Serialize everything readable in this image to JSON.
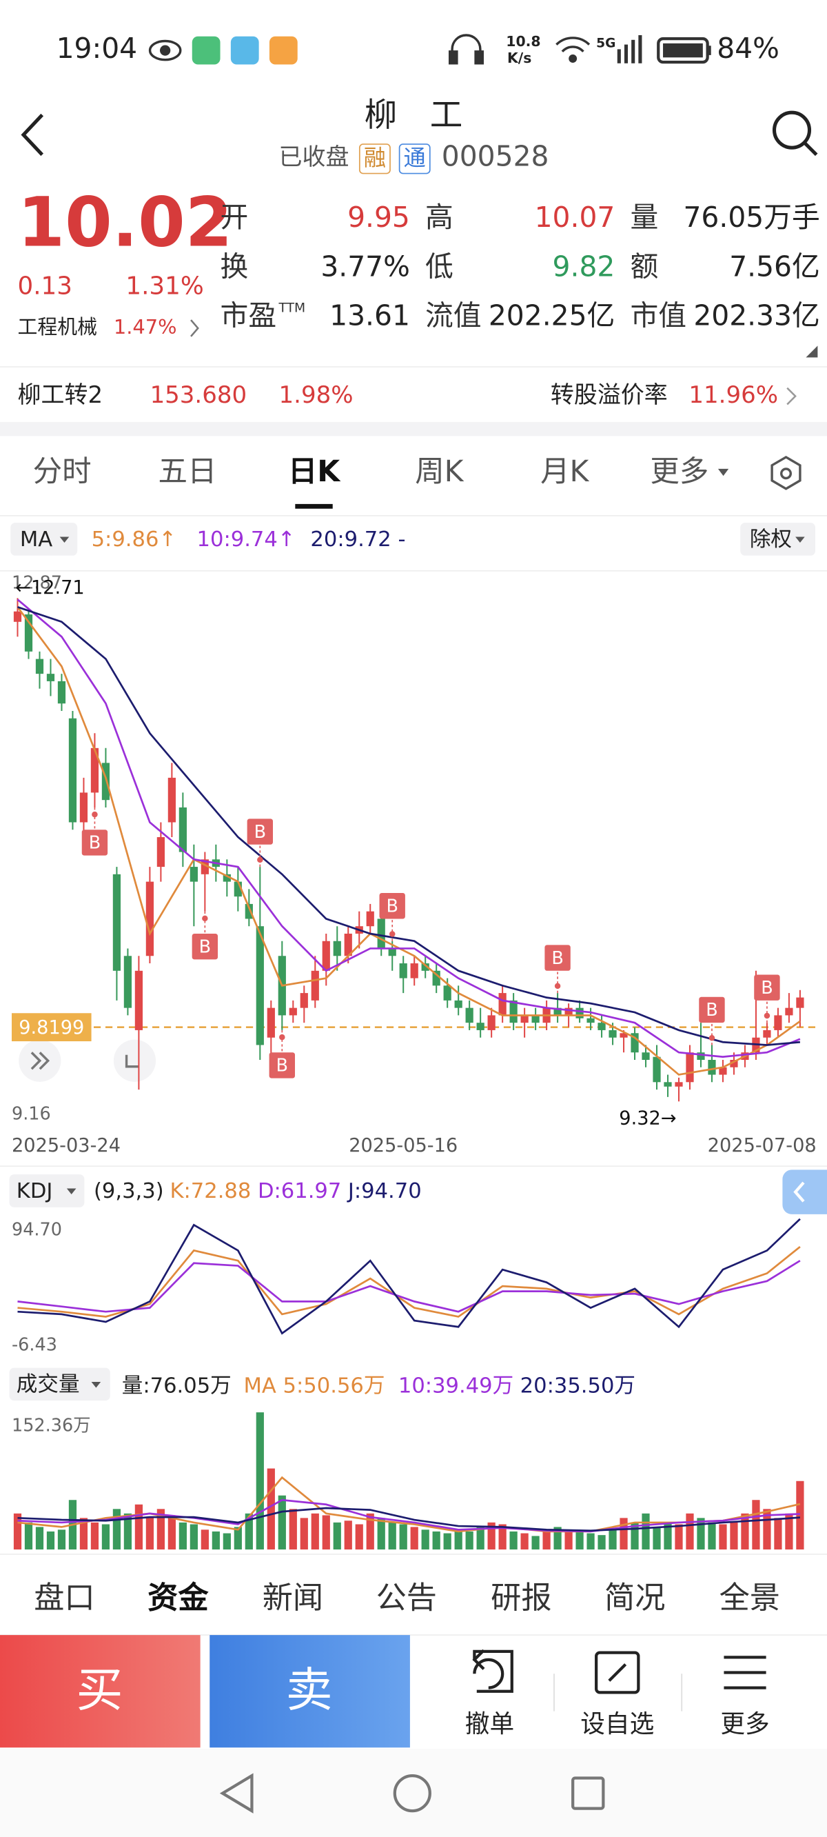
{
  "status_bar": {
    "time": "19:04",
    "speed": "10.8",
    "speed_unit": "K/s",
    "network": "5G",
    "battery": "84%"
  },
  "header": {
    "title": "柳　工",
    "status": "已收盘",
    "tags": [
      "融",
      "通"
    ],
    "code": "000528"
  },
  "quote": {
    "price": "10.02",
    "change": "0.13",
    "change_pct": "1.31%",
    "sector": "工程机械",
    "sector_pct": "1.47%",
    "fields": [
      {
        "label": "开",
        "value": "9.95"
      },
      {
        "label": "高",
        "value": "10.07"
      },
      {
        "label": "量",
        "value": "76.05万手"
      },
      {
        "label": "换",
        "value": "3.77%"
      },
      {
        "label": "低",
        "value": "9.82"
      },
      {
        "label": "额",
        "value": "7.56亿"
      },
      {
        "label": "市盈",
        "sup": "TTM",
        "value": "13.61"
      },
      {
        "label": "流值",
        "value": "202.25亿"
      },
      {
        "label": "市值",
        "value": "202.33亿"
      }
    ]
  },
  "bond": {
    "name": "柳工转2",
    "price": "153.680",
    "pct": "1.98%",
    "premium_label": "转股溢价率",
    "premium": "11.96%"
  },
  "tabs": {
    "items": [
      "分时",
      "五日",
      "日K",
      "周K",
      "月K",
      "更多"
    ],
    "active": 2
  },
  "chart_data": [
    {
      "type": "candlestick",
      "indicator": "MA",
      "adjust": "除权",
      "categories": [
        "2025-03-24",
        null,
        null,
        null,
        null,
        null,
        null,
        null,
        null,
        null,
        null,
        null,
        null,
        null,
        null,
        null,
        null,
        null,
        null,
        null,
        null,
        null,
        null,
        null,
        null,
        null,
        null,
        null,
        null,
        null,
        null,
        null,
        null,
        null,
        null,
        "2025-05-16",
        null,
        null,
        null,
        null,
        null,
        null,
        null,
        null,
        null,
        null,
        null,
        null,
        null,
        null,
        null,
        null,
        null,
        null,
        null,
        null,
        null,
        null,
        null,
        null,
        null,
        null,
        null,
        null,
        null,
        null,
        null,
        null,
        null,
        null,
        null,
        "2025-07-08"
      ],
      "open": [
        12.55,
        12.6,
        12.3,
        12.2,
        12.15,
        11.9,
        11.2,
        11.4,
        11.6,
        10.85,
        10.3,
        9.8,
        10.3,
        10.9,
        11.2,
        11.3,
        10.9,
        10.85,
        10.95,
        10.85,
        10.8,
        10.65,
        10.5,
        9.75,
        10.3,
        9.9,
        9.95,
        10.0,
        10.2,
        10.4,
        10.3,
        10.45,
        10.5,
        10.55,
        10.35,
        10.25,
        10.15,
        10.25,
        10.2,
        10.1,
        10.0,
        9.95,
        9.85,
        9.8,
        9.9,
        10.0,
        9.85,
        9.9,
        9.85,
        9.95,
        9.9,
        9.95,
        9.88,
        9.85,
        9.8,
        9.75,
        9.78,
        9.65,
        9.62,
        9.45,
        9.42,
        9.45,
        9.65,
        9.6,
        9.5,
        9.55,
        9.6,
        9.65,
        9.75,
        9.8,
        9.9,
        9.95
      ],
      "high": [
        12.71,
        12.62,
        12.35,
        12.3,
        12.2,
        11.95,
        11.5,
        11.8,
        11.7,
        10.9,
        10.35,
        10.3,
        10.9,
        11.2,
        11.6,
        11.4,
        11.05,
        11.0,
        11.05,
        10.95,
        10.9,
        10.75,
        10.9,
        10.0,
        10.4,
        10.0,
        10.1,
        10.3,
        10.45,
        10.5,
        10.5,
        10.6,
        10.65,
        10.6,
        10.4,
        10.3,
        10.3,
        10.3,
        10.25,
        10.15,
        10.1,
        10.0,
        9.95,
        9.95,
        10.1,
        10.05,
        9.95,
        9.95,
        10.0,
        10.05,
        9.98,
        10.0,
        9.95,
        9.9,
        9.85,
        9.8,
        9.82,
        9.7,
        9.7,
        9.5,
        9.48,
        9.7,
        9.85,
        9.7,
        9.6,
        9.65,
        9.7,
        10.2,
        9.85,
        9.95,
        10.05,
        10.07
      ],
      "low": [
        12.45,
        12.3,
        12.1,
        12.05,
        11.95,
        11.15,
        11.05,
        11.3,
        11.3,
        10.0,
        9.9,
        9.4,
        10.25,
        10.8,
        11.1,
        10.9,
        10.5,
        10.6,
        10.8,
        10.7,
        10.6,
        10.5,
        9.6,
        9.6,
        9.8,
        9.85,
        9.85,
        9.95,
        10.1,
        10.2,
        10.25,
        10.35,
        10.45,
        10.3,
        10.2,
        10.05,
        10.1,
        10.15,
        10.05,
        9.95,
        9.9,
        9.8,
        9.75,
        9.75,
        9.85,
        9.8,
        9.75,
        9.8,
        9.8,
        9.85,
        9.82,
        9.85,
        9.8,
        9.75,
        9.7,
        9.65,
        9.6,
        9.55,
        9.4,
        9.35,
        9.32,
        9.4,
        9.55,
        9.45,
        9.45,
        9.5,
        9.55,
        9.6,
        9.7,
        9.75,
        9.85,
        9.82
      ],
      "close": [
        12.62,
        12.35,
        12.2,
        12.15,
        12.0,
        11.2,
        11.4,
        11.7,
        11.35,
        10.2,
        9.95,
        10.2,
        10.8,
        11.1,
        11.5,
        11.0,
        10.8,
        10.95,
        10.9,
        10.8,
        10.7,
        10.55,
        9.7,
        9.95,
        9.9,
        9.95,
        10.05,
        10.2,
        10.4,
        10.3,
        10.45,
        10.5,
        10.6,
        10.35,
        10.3,
        10.15,
        10.25,
        10.2,
        10.1,
        10.0,
        9.95,
        9.85,
        9.8,
        9.9,
        10.05,
        9.85,
        9.9,
        9.85,
        9.95,
        9.9,
        9.95,
        9.88,
        9.85,
        9.8,
        9.75,
        9.78,
        9.65,
        9.6,
        9.45,
        9.42,
        9.45,
        9.65,
        9.6,
        9.5,
        9.55,
        9.6,
        9.65,
        9.75,
        9.8,
        9.9,
        9.95,
        10.02
      ],
      "series": [
        {
          "name": "5:9.86↑",
          "color": "#e08a3c",
          "x": [
            0,
            4,
            8,
            12,
            16,
            20,
            24,
            28,
            32,
            36,
            40,
            44,
            48,
            52,
            56,
            60,
            64,
            68,
            71
          ],
          "values": [
            12.65,
            12.25,
            11.5,
            10.45,
            10.95,
            10.8,
            10.1,
            10.15,
            10.45,
            10.3,
            10.05,
            9.9,
            9.9,
            9.9,
            9.75,
            9.5,
            9.55,
            9.7,
            9.86
          ]
        },
        {
          "name": "10:9.74↑",
          "color": "#9b30d9",
          "x": [
            0,
            4,
            8,
            12,
            16,
            20,
            24,
            28,
            32,
            36,
            40,
            44,
            48,
            52,
            56,
            60,
            64,
            68,
            71
          ],
          "values": [
            12.7,
            12.45,
            12.0,
            11.2,
            10.95,
            10.9,
            10.5,
            10.2,
            10.35,
            10.35,
            10.15,
            10.0,
            9.95,
            9.92,
            9.85,
            9.65,
            9.62,
            9.65,
            9.74
          ]
        },
        {
          "name": "20:9.72 -",
          "color": "#1c1c6e",
          "x": [
            0,
            4,
            8,
            12,
            16,
            20,
            24,
            28,
            32,
            36,
            40,
            44,
            48,
            52,
            56,
            60,
            64,
            68,
            71
          ],
          "values": [
            12.65,
            12.55,
            12.3,
            11.8,
            11.45,
            11.1,
            10.85,
            10.55,
            10.45,
            10.4,
            10.2,
            10.1,
            10.02,
            9.98,
            9.92,
            9.8,
            9.72,
            9.7,
            9.72
          ]
        }
      ],
      "ylim": [
        9.16,
        12.87
      ],
      "yticks": [
        12.87,
        9.16
      ],
      "reference": 9.8199,
      "high_label": {
        "value": 12.71,
        "label": "←12.71"
      },
      "low_label": {
        "value": 9.32,
        "label": "9.32→"
      },
      "signals": [
        {
          "day": 7,
          "label": "B",
          "side": "below"
        },
        {
          "day": 17,
          "label": "B",
          "side": "below"
        },
        {
          "day": 22,
          "label": "B",
          "side": "above"
        },
        {
          "day": 24,
          "label": "B",
          "side": "below"
        },
        {
          "day": 34,
          "label": "B",
          "side": "above"
        },
        {
          "day": 49,
          "label": "B",
          "side": "above"
        },
        {
          "day": 63,
          "label": "B",
          "side": "above"
        },
        {
          "day": 68,
          "label": "B",
          "side": "above"
        }
      ],
      "up_color": "#e04848",
      "down_color": "#3a9a5c"
    },
    {
      "type": "line",
      "title": "KDJ",
      "params": "(9,3,3)",
      "series": [
        {
          "name": "K:72.88",
          "color": "#e08a3c",
          "x": [
            0,
            4,
            8,
            12,
            16,
            20,
            24,
            28,
            32,
            36,
            40,
            44,
            48,
            52,
            56,
            60,
            64,
            68,
            71
          ],
          "values": [
            25,
            22,
            18,
            28,
            70,
            62,
            20,
            28,
            48,
            25,
            18,
            42,
            40,
            33,
            38,
            20,
            40,
            52,
            72.88
          ]
        },
        {
          "name": "D:61.97",
          "color": "#9b30d9",
          "x": [
            0,
            4,
            8,
            12,
            16,
            20,
            24,
            28,
            32,
            36,
            40,
            44,
            48,
            52,
            56,
            60,
            64,
            68,
            71
          ],
          "values": [
            30,
            26,
            22,
            25,
            60,
            58,
            30,
            30,
            42,
            30,
            22,
            38,
            38,
            35,
            36,
            28,
            38,
            46,
            61.97
          ]
        },
        {
          "name": "J:94.70",
          "color": "#1c1c6e",
          "x": [
            0,
            4,
            8,
            12,
            16,
            20,
            24,
            28,
            32,
            36,
            40,
            44,
            48,
            52,
            56,
            60,
            64,
            68,
            71
          ],
          "values": [
            22,
            20,
            14,
            30,
            90,
            70,
            5,
            30,
            62,
            15,
            10,
            55,
            45,
            25,
            40,
            10,
            55,
            70,
            94.7
          ]
        }
      ],
      "ylim": [
        -6.43,
        94.7
      ],
      "yticks": [
        {
          "value": 94.7,
          "label": "94.70"
        },
        -6.43
      ]
    },
    {
      "type": "bar",
      "title": "成交量",
      "volume_label": "量:76.05万",
      "values": [
        40,
        30,
        25,
        20,
        22,
        55,
        35,
        30,
        28,
        45,
        40,
        50,
        35,
        45,
        38,
        30,
        28,
        22,
        20,
        18,
        25,
        40,
        152.36,
        90,
        60,
        45,
        35,
        40,
        38,
        30,
        32,
        28,
        40,
        35,
        30,
        28,
        25,
        22,
        20,
        18,
        22,
        20,
        25,
        30,
        28,
        20,
        18,
        15,
        20,
        25,
        22,
        20,
        18,
        16,
        22,
        35,
        30,
        40,
        25,
        30,
        28,
        40,
        35,
        30,
        28,
        30,
        40,
        55,
        45,
        35,
        40,
        76.05
      ],
      "series": [
        {
          "name": "MA 5:50.56万",
          "color": "#e08a3c",
          "x": [
            0,
            4,
            8,
            12,
            16,
            20,
            24,
            28,
            32,
            36,
            40,
            44,
            48,
            52,
            56,
            60,
            64,
            68,
            71
          ],
          "values": [
            30,
            25,
            35,
            40,
            30,
            22,
            80,
            40,
            33,
            28,
            20,
            25,
            20,
            20,
            30,
            30,
            32,
            42,
            50.56
          ]
        },
        {
          "name": "10:39.49万",
          "color": "#9b30d9",
          "x": [
            0,
            4,
            8,
            12,
            16,
            20,
            24,
            28,
            32,
            36,
            40,
            44,
            48,
            52,
            56,
            60,
            64,
            68,
            71
          ],
          "values": [
            32,
            30,
            33,
            40,
            35,
            28,
            55,
            50,
            36,
            30,
            22,
            24,
            21,
            20,
            26,
            30,
            32,
            38,
            39.49
          ]
        },
        {
          "name": "20:35.50万",
          "color": "#1c1c6e",
          "x": [
            0,
            4,
            8,
            12,
            16,
            20,
            24,
            28,
            32,
            36,
            40,
            44,
            48,
            52,
            56,
            60,
            64,
            68,
            71
          ],
          "values": [
            35,
            33,
            32,
            36,
            36,
            30,
            42,
            46,
            44,
            33,
            26,
            25,
            22,
            21,
            23,
            26,
            30,
            33,
            35.5
          ]
        }
      ],
      "ylim": [
        0,
        152.36
      ],
      "yticks": [
        {
          "value": 152.36,
          "label": "152.36万"
        }
      ]
    }
  ],
  "bottom_tabs": {
    "items": [
      "盘口",
      "资金",
      "新闻",
      "公告",
      "研报",
      "简况",
      "全景"
    ],
    "active": 1
  },
  "actions": {
    "buy": "买",
    "sell": "卖",
    "items": [
      "撤单",
      "设自选",
      "更多"
    ]
  }
}
